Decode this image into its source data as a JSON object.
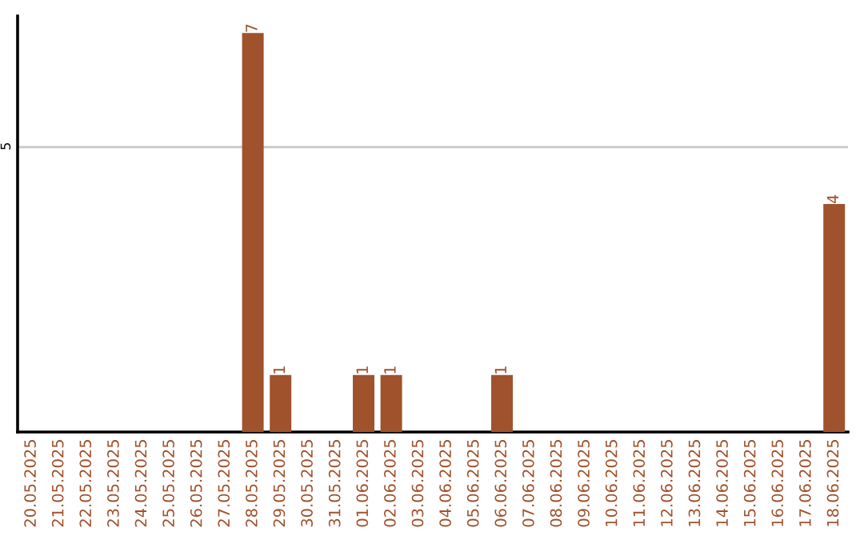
{
  "chart_data": {
    "type": "bar",
    "categories": [
      "20.05.2025",
      "21.05.2025",
      "22.05.2025",
      "23.05.2025",
      "24.05.2025",
      "25.05.2025",
      "26.05.2025",
      "27.05.2025",
      "28.05.2025",
      "29.05.2025",
      "30.05.2025",
      "31.05.2025",
      "01.06.2025",
      "02.06.2025",
      "03.06.2025",
      "04.06.2025",
      "05.06.2025",
      "06.06.2025",
      "07.06.2025",
      "08.06.2025",
      "09.06.2025",
      "10.06.2025",
      "11.06.2025",
      "12.06.2025",
      "13.06.2025",
      "14.06.2025",
      "15.06.2025",
      "16.06.2025",
      "17.06.2025",
      "18.06.2025"
    ],
    "values": [
      0,
      0,
      0,
      0,
      0,
      0,
      0,
      0,
      7,
      1,
      0,
      0,
      1,
      1,
      0,
      0,
      0,
      1,
      0,
      0,
      0,
      0,
      0,
      0,
      0,
      0,
      0,
      0,
      0,
      4
    ],
    "value_labels": [
      null,
      null,
      null,
      null,
      null,
      null,
      null,
      null,
      "7",
      "1",
      null,
      null,
      "1",
      "1",
      null,
      null,
      null,
      "1",
      null,
      null,
      null,
      null,
      null,
      null,
      null,
      null,
      null,
      null,
      null,
      "4"
    ],
    "color": "#a0522d",
    "ylim": [
      0,
      7.3
    ],
    "yticks": [
      5
    ],
    "grid": "y",
    "legend": false
  }
}
